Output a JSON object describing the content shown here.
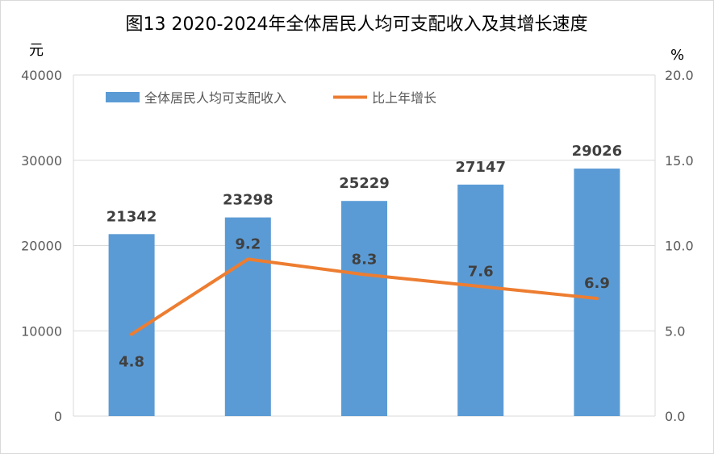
{
  "chart_data": {
    "type": "bar",
    "title": "图13  2020-2024年全体居民人均可支配收入及其增长速度",
    "y_left_unit": "元",
    "y_right_unit": "%",
    "categories": [
      "",
      "",
      "",
      "",
      ""
    ],
    "series": [
      {
        "name": "全体居民人均可支配收入",
        "type": "bar",
        "axis": "left",
        "color": "#5b9bd5",
        "values": [
          21342,
          23298,
          25229,
          27147,
          29026
        ]
      },
      {
        "name": "比上年增长",
        "type": "line",
        "axis": "right",
        "color": "#ed7d31",
        "values": [
          4.8,
          9.2,
          8.3,
          7.6,
          6.9
        ]
      }
    ],
    "y_left_range": [
      0,
      40000
    ],
    "y_left_ticks": [
      "0",
      "10000",
      "20000",
      "30000",
      "40000"
    ],
    "y_right_range": [
      0,
      20
    ],
    "y_right_ticks": [
      "0.0",
      "5.0",
      "10.0",
      "15.0",
      "20.0"
    ],
    "grid": true,
    "legend_position": "top-left"
  }
}
